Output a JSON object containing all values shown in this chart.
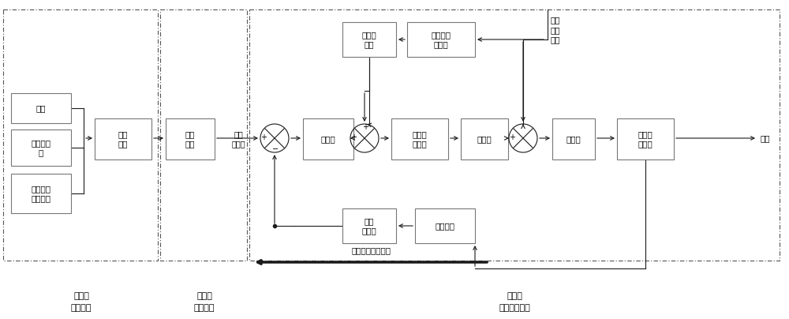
{
  "fig_width": 10.0,
  "fig_height": 4.04,
  "bg_color": "#ffffff",
  "line_color": "#1a1a1a",
  "box_edge": "#888888",
  "font_size": 7.5,
  "step1_label1": "第一步",
  "step1_label2": "判定工况",
  "step2_label1": "第二步",
  "step2_label2": "缸温修正",
  "step3_label1": "第三步",
  "step3_label2": "控制阀门开度",
  "box_zhuansu": "转速",
  "box_jieqi": "节气门开\n度",
  "box_jinqi": "进气歧管\n压力温度",
  "box_gkpd": "工况\n判定",
  "box_gw": "缸温\n修正",
  "box_zuikong": "最适\n空燃比",
  "box_ctrl": "控制器",
  "box_ranqi": "燃气阀\n门开度",
  "box_hunhe": "混合器",
  "box_jieqimen": "节气门",
  "box_neiran": "内燃发\n电机组",
  "box_qianku": "前馈控\n制器",
  "box_jiaqing": "甲烷浓度\n传感器",
  "box_shiji": "实际\n空燃比",
  "box_yangcq": "氧传感器",
  "label_tail": "尾气",
  "label_methane": "度甲\n烧浓\n传感",
  "label_feedback": "氧传感器反馈控制",
  "plus": "+",
  "minus": "−"
}
